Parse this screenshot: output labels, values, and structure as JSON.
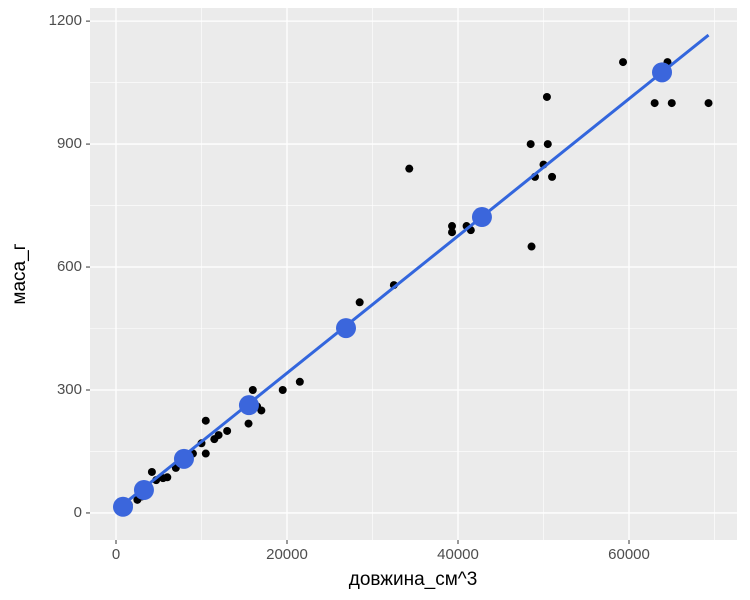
{
  "chart_data": {
    "type": "scatter",
    "x_label": "довжина_см^3",
    "y_label": "маса_г",
    "xlim": [
      -3040,
      72630
    ],
    "ylim": [
      -66,
      1232
    ],
    "xticks": [
      0,
      20000,
      40000,
      60000
    ],
    "yticks": [
      0,
      300,
      600,
      900,
      1200
    ],
    "grid": true,
    "background": "#ebebeb",
    "series": [
      {
        "mode": "markers",
        "color": "#000000",
        "size": 4,
        "x": [
          1000,
          1500,
          2500,
          3000,
          3500,
          4200,
          4700,
          5500,
          6000,
          7000,
          7500,
          8000,
          8500,
          9000,
          10000,
          10500,
          10500,
          11500,
          12000,
          13000,
          15500,
          16000,
          16500,
          17000,
          19500,
          21500,
          28500,
          32500,
          34300,
          39300,
          39300,
          41000,
          41500,
          48500,
          48600,
          49000,
          50000,
          50400,
          50500,
          51000,
          59300,
          63000,
          64500,
          65000,
          69300
        ],
        "values": [
          10,
          20,
          32,
          40,
          50,
          100,
          80,
          85,
          87,
          110,
          125,
          120,
          130,
          145,
          170,
          145,
          225,
          180,
          190,
          200,
          218,
          300,
          260,
          250,
          300,
          320,
          514,
          556,
          840,
          685,
          700,
          700,
          690,
          900,
          650,
          820,
          850,
          1015,
          900,
          820,
          1100,
          1000,
          1100,
          1000,
          1000
        ]
      },
      {
        "mode": "line",
        "color": "#3366dd",
        "x": [
          200,
          69300
        ],
        "values": [
          10,
          1166
        ]
      },
      {
        "mode": "markers",
        "color": "#3b66dc",
        "size": 10,
        "x": [
          820,
          3270,
          7950,
          15550,
          26900,
          42800,
          63860
        ],
        "values": [
          15,
          56,
          132,
          263,
          451,
          722,
          1075
        ]
      }
    ]
  }
}
